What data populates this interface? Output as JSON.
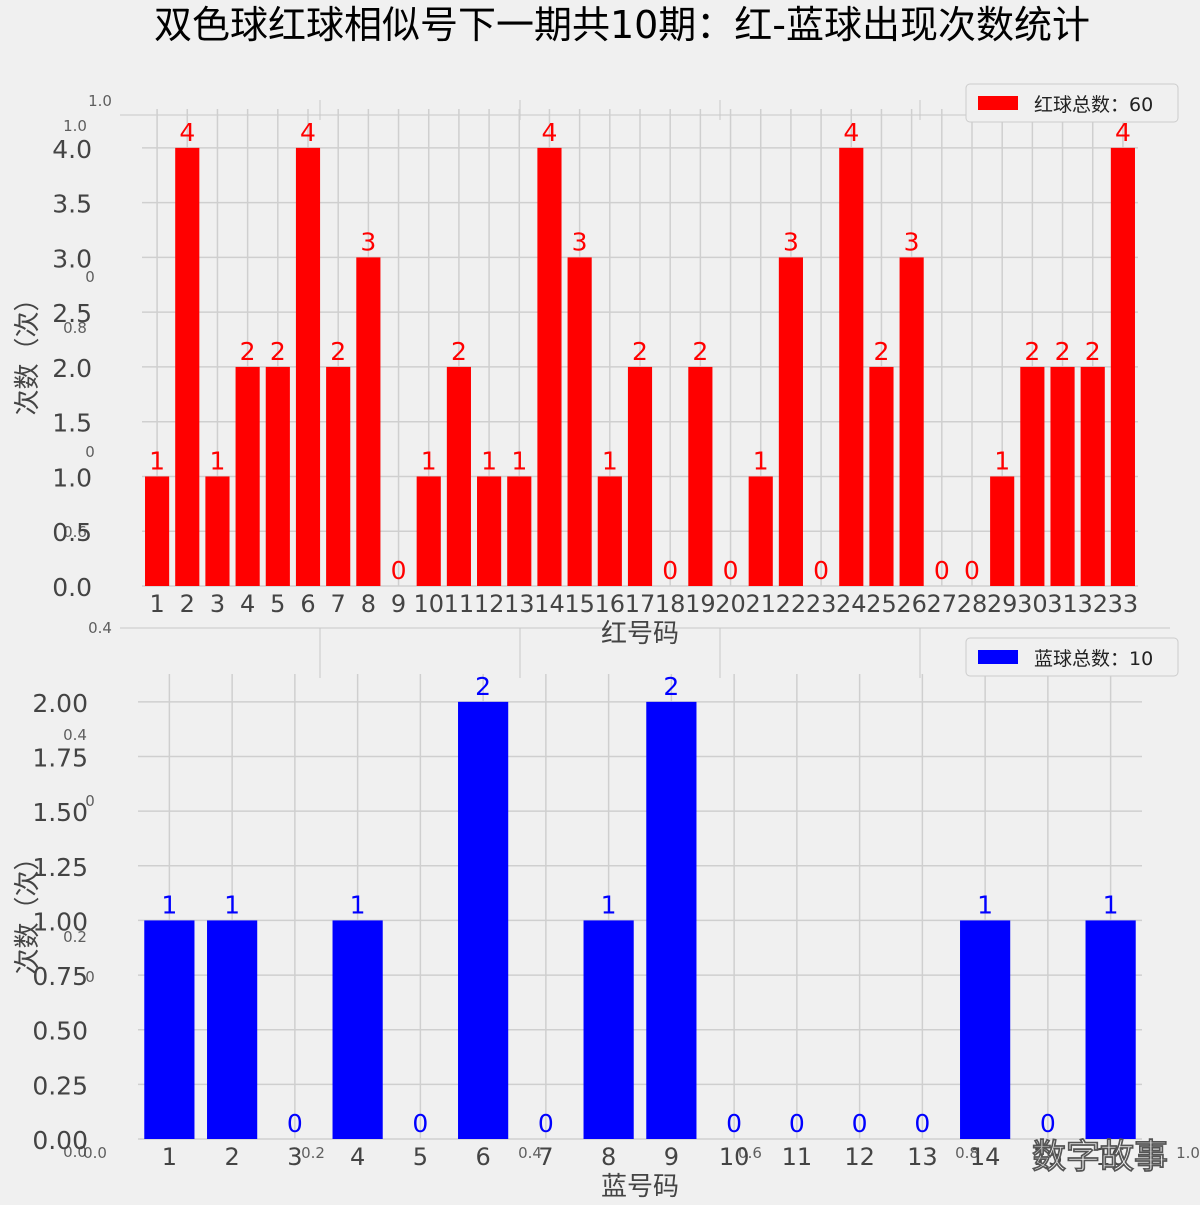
{
  "title": "双色球红球相似号下一期共10期：红-蓝球出现次数统计",
  "watermark": "数字故事",
  "ghost_ticks": [
    "1.0",
    "1.0",
    "0",
    "0.8",
    "0",
    "0.6",
    "0.4",
    "0.4",
    "0",
    "0.2",
    "0",
    "0.0",
    "0.0",
    "0.2",
    "0.4",
    "0.6",
    "0.8",
    "1.0"
  ],
  "chart_data": [
    {
      "type": "bar",
      "color": "#ff0000",
      "categories": [
        "1",
        "2",
        "3",
        "4",
        "5",
        "6",
        "7",
        "8",
        "9",
        "10",
        "11",
        "12",
        "13",
        "14",
        "15",
        "16",
        "17",
        "18",
        "19",
        "20",
        "21",
        "22",
        "23",
        "24",
        "25",
        "26",
        "27",
        "28",
        "29",
        "30",
        "31",
        "32",
        "33"
      ],
      "values": [
        1,
        4,
        1,
        2,
        2,
        4,
        2,
        3,
        0,
        1,
        2,
        1,
        1,
        4,
        3,
        1,
        2,
        0,
        2,
        0,
        1,
        3,
        0,
        4,
        2,
        3,
        0,
        0,
        1,
        2,
        2,
        2,
        4
      ],
      "xlabel": "红号码",
      "ylabel": "次数（次）",
      "ylim": [
        0,
        4.3
      ],
      "yticks": [
        "0.0",
        "0.5",
        "1.0",
        "1.5",
        "2.0",
        "2.5",
        "3.0",
        "3.5",
        "4.0"
      ],
      "legend": "红球总数：60",
      "legend_position": "top-right",
      "grid": true
    },
    {
      "type": "bar",
      "color": "#0000ff",
      "categories": [
        "1",
        "2",
        "3",
        "4",
        "5",
        "6",
        "7",
        "8",
        "9",
        "10",
        "11",
        "12",
        "13",
        "14",
        "15",
        "16"
      ],
      "values": [
        1,
        1,
        0,
        1,
        0,
        2,
        0,
        1,
        2,
        0,
        0,
        0,
        0,
        1,
        0,
        1
      ],
      "xlabel": "蓝号码",
      "ylabel": "次数（次）",
      "ylim": [
        0,
        2.1
      ],
      "yticks": [
        "0.00",
        "0.25",
        "0.50",
        "0.75",
        "1.00",
        "1.25",
        "1.50",
        "1.75",
        "2.00"
      ],
      "legend": "蓝球总数：10",
      "legend_position": "top-right",
      "grid": true
    }
  ]
}
